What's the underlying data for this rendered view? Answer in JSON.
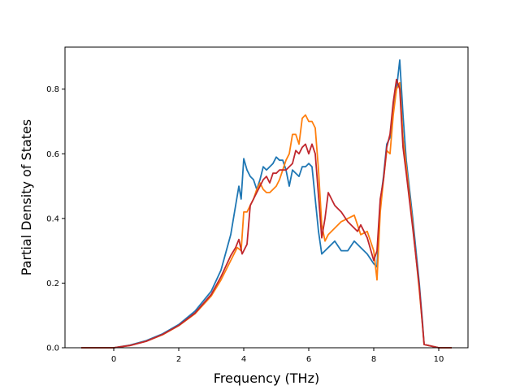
{
  "chart_data": {
    "type": "line",
    "title": "",
    "xlabel": "Frequency (THz)",
    "ylabel": "Partial Density of States",
    "xlim": [
      -1.5,
      10.9
    ],
    "ylim": [
      0.0,
      0.93
    ],
    "xticks": [
      0,
      2,
      4,
      6,
      8,
      10
    ],
    "yticks": [
      0.0,
      0.2,
      0.4,
      0.6,
      0.8
    ],
    "xtick_labels": [
      "0",
      "2",
      "4",
      "6",
      "8",
      "10"
    ],
    "ytick_labels": [
      "0.0",
      "0.2",
      "0.4",
      "0.6",
      "0.8"
    ],
    "grid": false,
    "legend": "none",
    "series": [
      {
        "color": "#1f77b4",
        "x": [
          -1.0,
          0.0,
          0.5,
          1.0,
          1.5,
          2.0,
          2.5,
          3.0,
          3.3,
          3.6,
          3.75,
          3.85,
          3.92,
          4.0,
          4.1,
          4.2,
          4.3,
          4.4,
          4.5,
          4.6,
          4.7,
          4.8,
          4.9,
          5.0,
          5.1,
          5.2,
          5.3,
          5.4,
          5.5,
          5.6,
          5.7,
          5.8,
          5.9,
          6.0,
          6.1,
          6.2,
          6.3,
          6.4,
          6.5,
          6.6,
          6.8,
          7.0,
          7.2,
          7.4,
          7.5,
          7.6,
          7.8,
          8.0,
          8.1,
          8.2,
          8.3,
          8.4,
          8.5,
          8.6,
          8.7,
          8.8,
          8.9,
          9.0,
          9.2,
          9.4,
          9.5,
          9.55,
          10.0,
          10.4
        ],
        "y": [
          0.0,
          0.0,
          0.008,
          0.022,
          0.043,
          0.072,
          0.113,
          0.175,
          0.24,
          0.35,
          0.44,
          0.5,
          0.46,
          0.585,
          0.55,
          0.53,
          0.52,
          0.49,
          0.52,
          0.56,
          0.55,
          0.56,
          0.57,
          0.59,
          0.58,
          0.58,
          0.55,
          0.5,
          0.55,
          0.54,
          0.53,
          0.56,
          0.56,
          0.57,
          0.56,
          0.46,
          0.36,
          0.29,
          0.3,
          0.31,
          0.33,
          0.3,
          0.3,
          0.33,
          0.32,
          0.31,
          0.29,
          0.26,
          0.25,
          0.45,
          0.53,
          0.63,
          0.65,
          0.74,
          0.8,
          0.89,
          0.72,
          0.58,
          0.4,
          0.2,
          0.08,
          0.01,
          0.0,
          0.0
        ]
      },
      {
        "color": "#ff7f0e",
        "x": [
          -1.0,
          0.0,
          0.5,
          1.0,
          1.5,
          2.0,
          2.5,
          3.0,
          3.3,
          3.6,
          3.8,
          3.92,
          4.0,
          4.1,
          4.2,
          4.3,
          4.4,
          4.5,
          4.6,
          4.7,
          4.8,
          4.9,
          5.0,
          5.1,
          5.2,
          5.3,
          5.4,
          5.5,
          5.6,
          5.7,
          5.8,
          5.9,
          6.0,
          6.1,
          6.2,
          6.3,
          6.4,
          6.5,
          6.6,
          6.8,
          7.0,
          7.2,
          7.4,
          7.5,
          7.6,
          7.8,
          8.0,
          8.1,
          8.2,
          8.3,
          8.4,
          8.5,
          8.6,
          8.7,
          8.8,
          8.9,
          9.0,
          9.2,
          9.4,
          9.5,
          9.55,
          10.0,
          10.4
        ],
        "y": [
          0.0,
          0.0,
          0.007,
          0.02,
          0.04,
          0.068,
          0.105,
          0.16,
          0.21,
          0.27,
          0.31,
          0.3,
          0.42,
          0.42,
          0.44,
          0.46,
          0.49,
          0.51,
          0.49,
          0.48,
          0.48,
          0.49,
          0.5,
          0.52,
          0.55,
          0.58,
          0.6,
          0.66,
          0.66,
          0.63,
          0.71,
          0.72,
          0.7,
          0.7,
          0.68,
          0.55,
          0.38,
          0.33,
          0.35,
          0.37,
          0.39,
          0.4,
          0.41,
          0.38,
          0.35,
          0.36,
          0.3,
          0.21,
          0.42,
          0.52,
          0.61,
          0.6,
          0.72,
          0.8,
          0.82,
          0.65,
          0.56,
          0.38,
          0.18,
          0.07,
          0.01,
          0.0,
          0.0
        ]
      },
      {
        "color": "#c0272d",
        "x": [
          -1.0,
          0.0,
          0.5,
          1.0,
          1.5,
          2.0,
          2.5,
          3.0,
          3.3,
          3.6,
          3.75,
          3.85,
          3.95,
          4.0,
          4.1,
          4.2,
          4.3,
          4.4,
          4.5,
          4.6,
          4.7,
          4.8,
          4.9,
          5.0,
          5.1,
          5.2,
          5.3,
          5.4,
          5.5,
          5.6,
          5.7,
          5.8,
          5.9,
          6.0,
          6.1,
          6.2,
          6.3,
          6.4,
          6.5,
          6.6,
          6.8,
          7.0,
          7.2,
          7.4,
          7.5,
          7.6,
          7.8,
          8.0,
          8.1,
          8.2,
          8.3,
          8.4,
          8.5,
          8.6,
          8.7,
          8.8,
          8.9,
          9.0,
          9.2,
          9.4,
          9.5,
          9.55,
          10.0,
          10.4
        ],
        "y": [
          0.0,
          0.0,
          0.007,
          0.02,
          0.041,
          0.069,
          0.107,
          0.165,
          0.22,
          0.285,
          0.31,
          0.335,
          0.29,
          0.3,
          0.32,
          0.44,
          0.46,
          0.48,
          0.5,
          0.52,
          0.53,
          0.51,
          0.54,
          0.54,
          0.55,
          0.55,
          0.55,
          0.56,
          0.57,
          0.61,
          0.6,
          0.62,
          0.63,
          0.6,
          0.63,
          0.6,
          0.47,
          0.34,
          0.4,
          0.48,
          0.44,
          0.42,
          0.39,
          0.37,
          0.36,
          0.38,
          0.34,
          0.27,
          0.3,
          0.46,
          0.52,
          0.62,
          0.66,
          0.76,
          0.83,
          0.8,
          0.62,
          0.54,
          0.37,
          0.19,
          0.07,
          0.01,
          0.0,
          0.0
        ]
      }
    ]
  }
}
